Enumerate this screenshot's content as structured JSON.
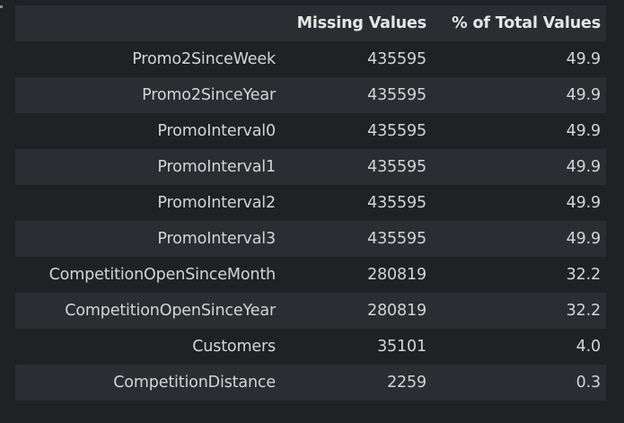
{
  "table": {
    "columns": [
      "",
      "Missing Values",
      "% of Total Values"
    ],
    "rows": [
      {
        "index": "Promo2SinceWeek",
        "missing": "435595",
        "pct": "49.9"
      },
      {
        "index": "Promo2SinceYear",
        "missing": "435595",
        "pct": "49.9"
      },
      {
        "index": "PromoInterval0",
        "missing": "435595",
        "pct": "49.9"
      },
      {
        "index": "PromoInterval1",
        "missing": "435595",
        "pct": "49.9"
      },
      {
        "index": "PromoInterval2",
        "missing": "435595",
        "pct": "49.9"
      },
      {
        "index": "PromoInterval3",
        "missing": "435595",
        "pct": "49.9"
      },
      {
        "index": "CompetitionOpenSinceMonth",
        "missing": "280819",
        "pct": "32.2"
      },
      {
        "index": "CompetitionOpenSinceYear",
        "missing": "280819",
        "pct": "32.2"
      },
      {
        "index": "Customers",
        "missing": "35101",
        "pct": "4.0"
      },
      {
        "index": "CompetitionDistance",
        "missing": "2259",
        "pct": "0.3"
      }
    ]
  },
  "colors": {
    "background": "#202124",
    "stripe": "#2a2d31",
    "text": "#d4d4d4",
    "header_text": "#e6e6e6"
  }
}
